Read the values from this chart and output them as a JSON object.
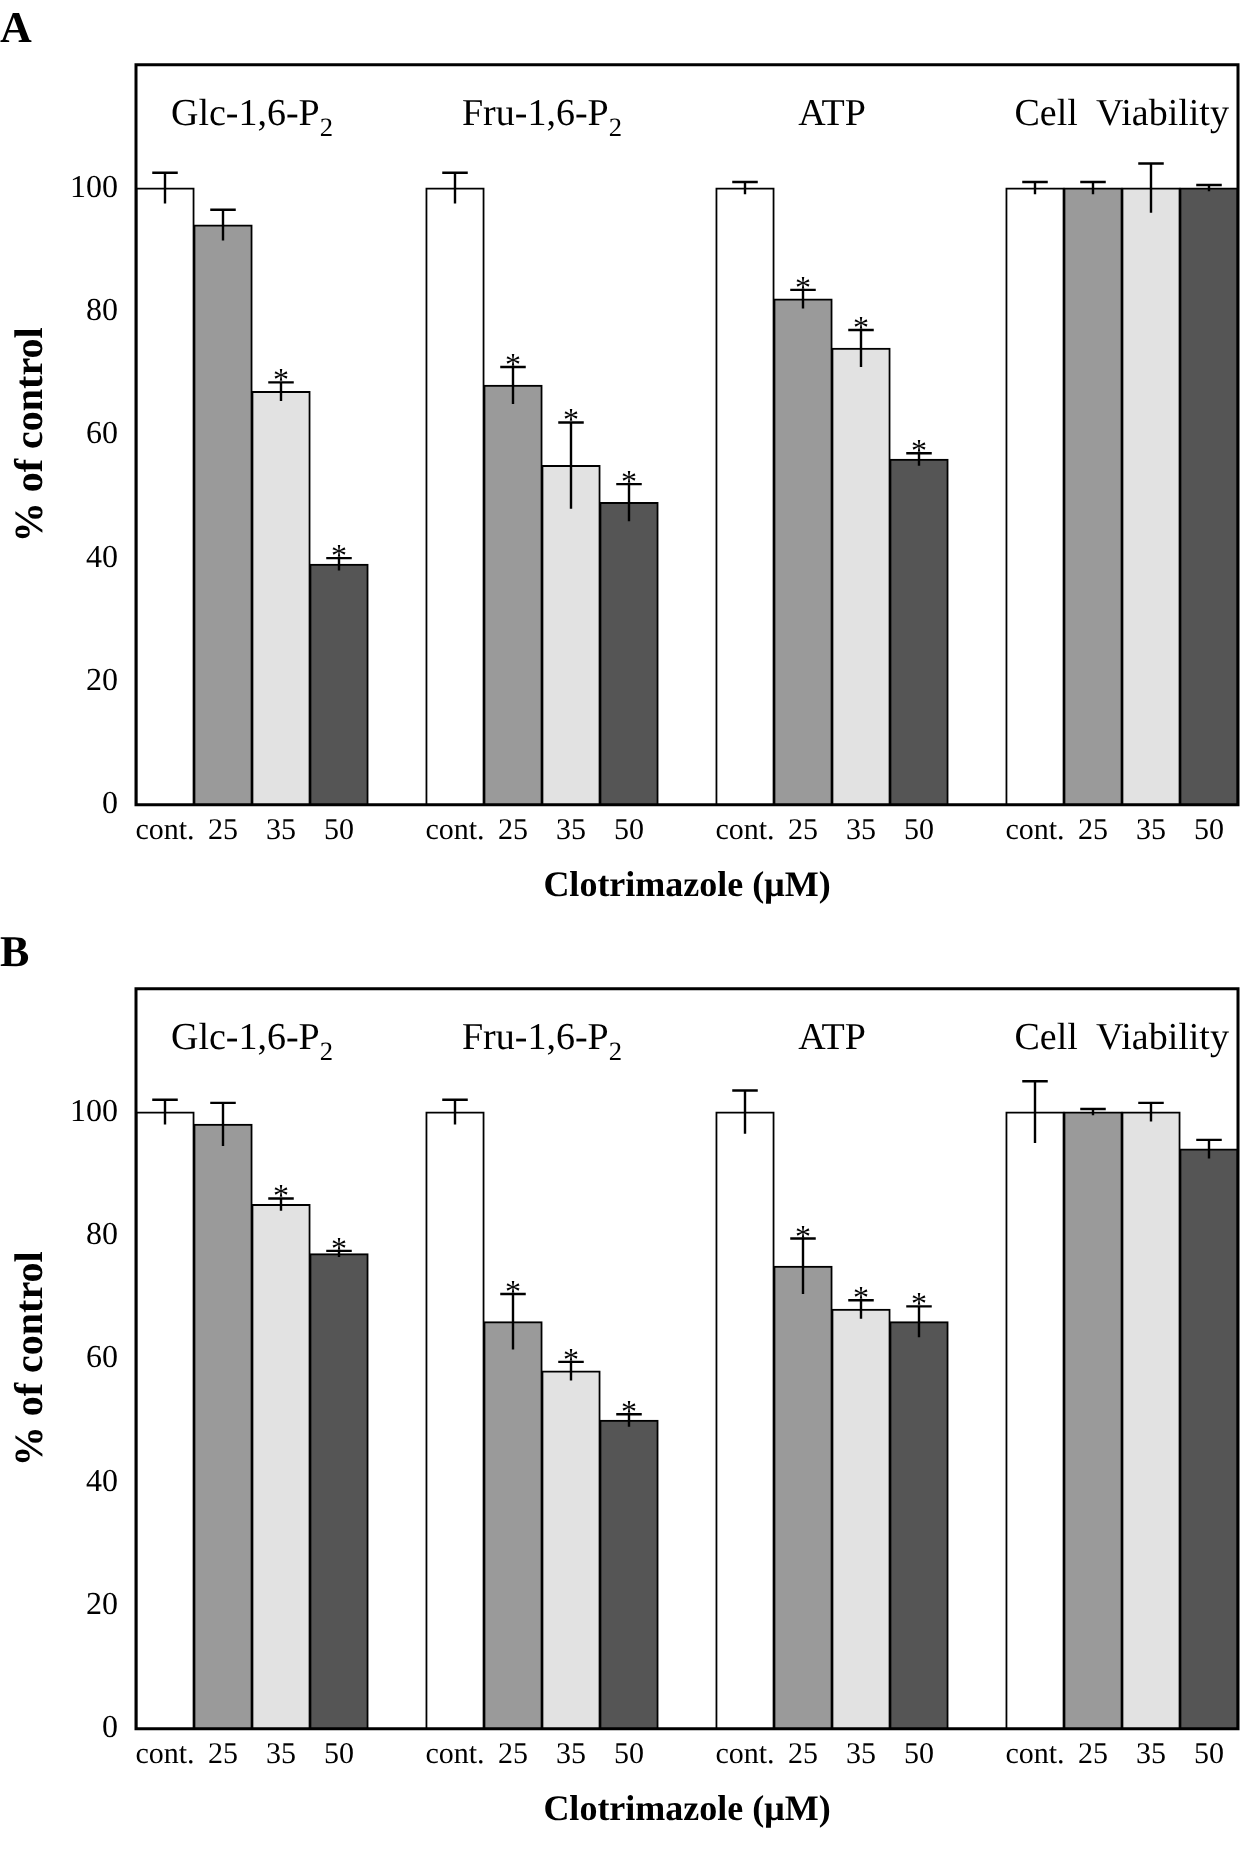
{
  "chart_data": [
    {
      "type": "bar",
      "title": "A",
      "xlabel": "Clotrimazole (μM)",
      "ylabel": "% of control",
      "categories": [
        "cont.",
        "25",
        "35",
        "50",
        null,
        "cont.",
        "25",
        "35",
        "50",
        null,
        "cont.",
        "25",
        "35",
        "50",
        null,
        "cont.",
        "25",
        "35",
        "50"
      ],
      "values": [
        100,
        94,
        67,
        39,
        null,
        100,
        68,
        55,
        49,
        null,
        100,
        82,
        74,
        56,
        null,
        100,
        100,
        100,
        100
      ],
      "colors": [
        "#ffffff",
        "#9a9a9a",
        "#e2e2e2",
        "#555555",
        null,
        "#ffffff",
        "#9a9a9a",
        "#e2e2e2",
        "#555555",
        null,
        "#ffffff",
        "#9a9a9a",
        "#e2e2e2",
        "#555555",
        null,
        "#ffffff",
        "#9a9a9a",
        "#e2e2e2",
        "#555555"
      ],
      "errors": [
        2.5,
        2.5,
        1.5,
        1,
        null,
        2.5,
        3,
        7,
        3,
        null,
        1,
        1.5,
        3,
        1,
        null,
        1,
        1,
        4,
        0.5
      ],
      "value_labels": [
        null,
        null,
        "*",
        "*",
        null,
        null,
        "*",
        "*",
        "*",
        null,
        null,
        "*",
        "*",
        "*",
        null,
        null,
        null,
        null,
        null
      ],
      "annotations": [
        "Glc-1,6-P$_{2}$",
        "Fru-1,6-P$_{2}$",
        "ATP",
        "Cell  Viability"
      ],
      "ylim": [
        0,
        120
      ],
      "yticks": [
        0,
        20,
        40,
        60,
        80,
        100
      ]
    },
    {
      "type": "bar",
      "title": "B",
      "xlabel": "Clotrimazole (μM)",
      "ylabel": "% of control",
      "categories": [
        "cont.",
        "25",
        "35",
        "50",
        null,
        "cont.",
        "25",
        "35",
        "50",
        null,
        "cont.",
        "25",
        "35",
        "50",
        null,
        "cont.",
        "25",
        "35",
        "50"
      ],
      "values": [
        100,
        98,
        85,
        77,
        null,
        100,
        66,
        58,
        50,
        null,
        100,
        75,
        68,
        66,
        null,
        100,
        100,
        100,
        94
      ],
      "colors": [
        "#ffffff",
        "#9a9a9a",
        "#e2e2e2",
        "#555555",
        null,
        "#ffffff",
        "#9a9a9a",
        "#e2e2e2",
        "#555555",
        null,
        "#ffffff",
        "#9a9a9a",
        "#e2e2e2",
        "#555555",
        null,
        "#ffffff",
        "#9a9a9a",
        "#e2e2e2",
        "#555555"
      ],
      "errors": [
        2,
        3.5,
        1,
        0.5,
        null,
        2,
        4.5,
        1.5,
        1,
        null,
        3.5,
        4.5,
        1.5,
        2.5,
        null,
        5,
        0.5,
        1.5,
        1.5
      ],
      "value_labels": [
        null,
        null,
        "*",
        "*",
        null,
        null,
        "*",
        "*",
        "*",
        null,
        null,
        "*",
        "*",
        "*",
        null,
        null,
        null,
        null,
        null
      ],
      "annotations": [
        "Glc-1,6-P$_{2}$",
        "Fru-1,6-P$_{2}$",
        "ATP",
        "Cell  Viability"
      ],
      "ylim": [
        0,
        120
      ],
      "yticks": [
        0,
        20,
        40,
        60,
        80,
        100
      ]
    }
  ]
}
